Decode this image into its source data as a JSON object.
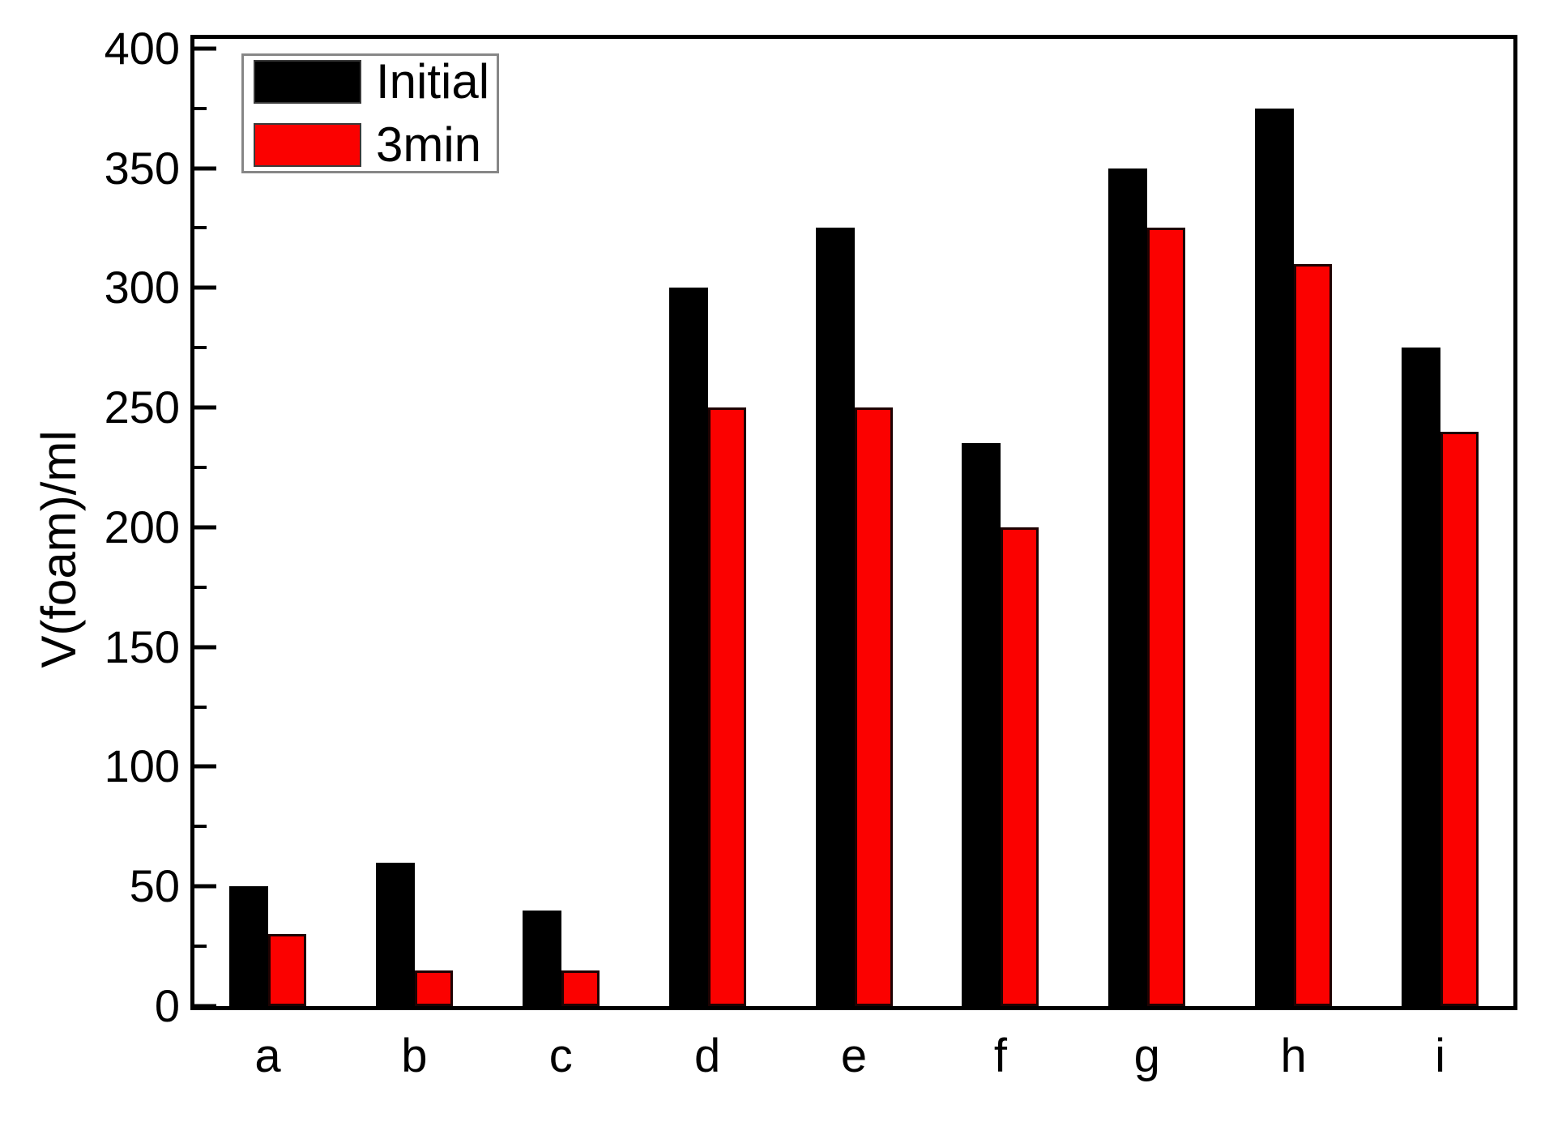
{
  "chart_data": {
    "type": "bar",
    "title": "",
    "xlabel": "",
    "ylabel": "V(foam)/ml",
    "categories": [
      "a",
      "b",
      "c",
      "d",
      "e",
      "f",
      "g",
      "h",
      "i"
    ],
    "series": [
      {
        "name": "Initial",
        "color": "#000000",
        "values": [
          50,
          60,
          40,
          300,
          325,
          235,
          350,
          375,
          275
        ]
      },
      {
        "name": "3min",
        "color": "#fb0100",
        "values": [
          30,
          15,
          15,
          250,
          250,
          200,
          325,
          310,
          240
        ]
      }
    ],
    "ylim": [
      0,
      400
    ],
    "y_major_tick_step": 50,
    "y_minor_tick_step": 25,
    "y_tick_labels": [
      "0",
      "50",
      "100",
      "150",
      "200",
      "250",
      "300",
      "350",
      "400"
    ],
    "grid": false,
    "legend_position": "top-left",
    "axis_color": "#000000",
    "legend_border_color": "#878787"
  }
}
